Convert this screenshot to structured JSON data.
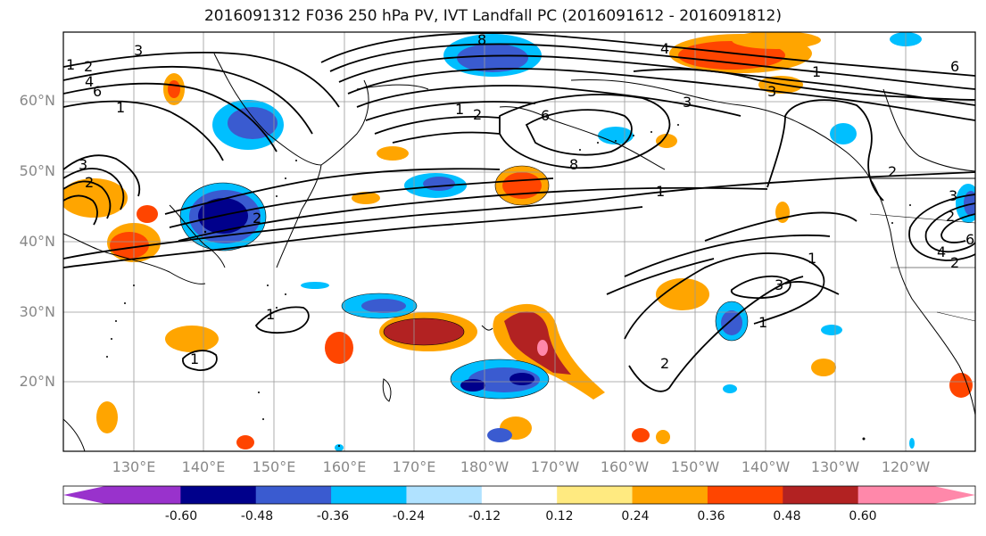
{
  "title": "2016091312 F036 250 hPa PV, IVT Landfall PC (2016091612 - 2016091812)",
  "lat_labels": [
    "60°N",
    "50°N",
    "40°N",
    "30°N",
    "20°N"
  ],
  "lon_labels": [
    "130°E",
    "140°E",
    "150°E",
    "160°E",
    "170°E",
    "180°W",
    "170°W",
    "160°W",
    "150°W",
    "140°W",
    "130°W",
    "120°W"
  ],
  "colorbar": {
    "ticks": [
      "-0.60",
      "-0.48",
      "-0.36",
      "-0.24",
      "-0.12",
      "0.12",
      "0.24",
      "0.36",
      "0.48",
      "0.60"
    ],
    "colors": [
      "#9932cc",
      "#00008b",
      "#3a5bd0",
      "#00bfff",
      "#b0e2ff",
      "#ffffff",
      "#ffea80",
      "#ffa500",
      "#ff4500",
      "#b22222",
      "#ff88aa"
    ]
  },
  "contour_labels": [
    "1",
    "2",
    "3",
    "4",
    "6",
    "8",
    "1",
    "2",
    "1",
    "3",
    "2",
    "1",
    "1",
    "2",
    "3",
    "4",
    "6",
    "8",
    "6",
    "3",
    "2",
    "1",
    "1",
    "1",
    "2",
    "2",
    "3",
    "4",
    "6",
    "1",
    "2",
    "3"
  ]
}
